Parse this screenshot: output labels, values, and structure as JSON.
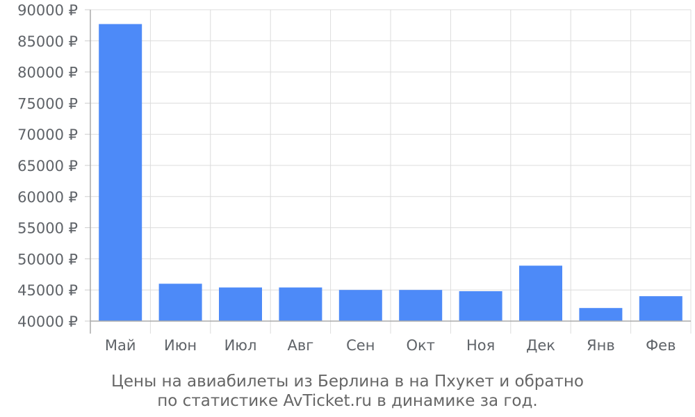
{
  "chart_data": {
    "type": "bar",
    "categories": [
      "Май",
      "Июн",
      "Июл",
      "Авг",
      "Сен",
      "Окт",
      "Ноя",
      "Дек",
      "Янв",
      "Фев"
    ],
    "series": [
      {
        "values": [
          87700,
          46000,
          45400,
          45400,
          45000,
          45000,
          44800,
          48900,
          42100,
          44000
        ]
      }
    ],
    "ylim": [
      40000,
      90000
    ],
    "y_ticks": [
      40000,
      45000,
      50000,
      55000,
      60000,
      65000,
      70000,
      75000,
      80000,
      85000,
      90000
    ],
    "y_tick_labels": [
      "40000 ₽",
      "45000 ₽",
      "50000 ₽",
      "55000 ₽",
      "60000 ₽",
      "65000 ₽",
      "70000 ₽",
      "75000 ₽",
      "80000 ₽",
      "85000 ₽",
      "90000 ₽"
    ],
    "caption_lines": [
      "Цены на авиабилеты из Берлина в на Пхукет и обратно",
      "по статистике AvTicket.ru в динамике за год."
    ],
    "grid": true,
    "legend": "none",
    "bar_color": "#4d8af8",
    "grid_color": "#dcdcdc"
  }
}
